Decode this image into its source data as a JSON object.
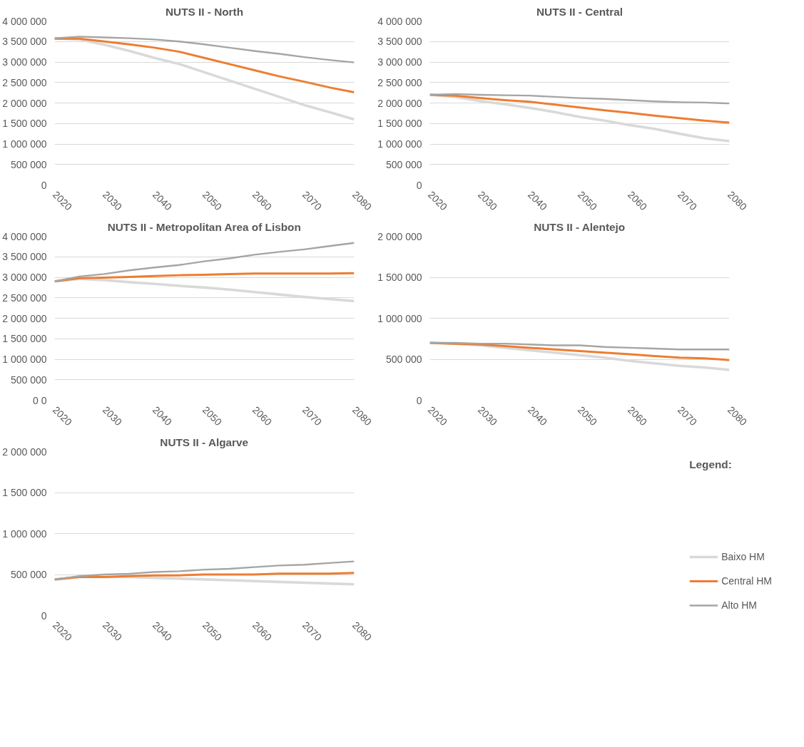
{
  "chart_data": [
    {
      "type": "line",
      "title": "NUTS II - North",
      "x": [
        2020,
        2025,
        2030,
        2035,
        2040,
        2045,
        2050,
        2055,
        2060,
        2065,
        2070,
        2075,
        2080
      ],
      "xlim": [
        2020,
        2080
      ],
      "xticks": [
        2020,
        2030,
        2040,
        2050,
        2060,
        2070,
        2080
      ],
      "ylim": [
        0,
        4000000
      ],
      "yticks": [
        {
          "value": 0,
          "label": "0"
        },
        {
          "value": 500000,
          "label": "500 000"
        },
        {
          "value": 1000000,
          "label": "1 000 000"
        },
        {
          "value": 1500000,
          "label": "1 500 000"
        },
        {
          "value": 2000000,
          "label": "2 000 000"
        },
        {
          "value": 2500000,
          "label": "2 500 000"
        },
        {
          "value": 3000000,
          "label": "3 000 000"
        },
        {
          "value": 3500000,
          "label": "3 500 000"
        },
        {
          "value": 4000000,
          "label": "4 000 000"
        }
      ],
      "grid": "y",
      "legend": false,
      "series": [
        {
          "color": "#d9d9d9",
          "values": [
            3580000,
            3550000,
            3420000,
            3270000,
            3100000,
            2950000,
            2750000,
            2550000,
            2350000,
            2150000,
            1950000,
            1780000,
            1600000
          ]
        },
        {
          "color": "#ed7d31",
          "values": [
            3570000,
            3570000,
            3500000,
            3430000,
            3350000,
            3250000,
            3100000,
            2950000,
            2800000,
            2650000,
            2520000,
            2380000,
            2260000
          ]
        },
        {
          "color": "#a5a5a5",
          "values": [
            3580000,
            3620000,
            3600000,
            3580000,
            3550000,
            3500000,
            3430000,
            3350000,
            3270000,
            3200000,
            3120000,
            3050000,
            2990000
          ]
        }
      ]
    },
    {
      "type": "line",
      "title": "NUTS II - Central",
      "x": [
        2020,
        2025,
        2030,
        2035,
        2040,
        2045,
        2050,
        2055,
        2060,
        2065,
        2070,
        2075,
        2080
      ],
      "xlim": [
        2020,
        2080
      ],
      "xticks": [
        2020,
        2030,
        2040,
        2050,
        2060,
        2070,
        2080
      ],
      "ylim": [
        0,
        4000000
      ],
      "yticks": [
        {
          "value": 0,
          "label": "0"
        },
        {
          "value": 500000,
          "label": "500 000"
        },
        {
          "value": 1000000,
          "label": "1 000 000"
        },
        {
          "value": 1500000,
          "label": "1 500 000"
        },
        {
          "value": 2000000,
          "label": "2 000 000"
        },
        {
          "value": 2500000,
          "label": "2 500 000"
        },
        {
          "value": 3000000,
          "label": "3 000 000"
        },
        {
          "value": 3500000,
          "label": "3 500 000"
        },
        {
          "value": 4000000,
          "label": "4 000 000"
        }
      ],
      "grid": "y",
      "legend": false,
      "series": [
        {
          "color": "#d9d9d9",
          "values": [
            2200000,
            2150000,
            2050000,
            1970000,
            1880000,
            1780000,
            1660000,
            1570000,
            1460000,
            1370000,
            1250000,
            1140000,
            1070000
          ]
        },
        {
          "color": "#ed7d31",
          "values": [
            2200000,
            2180000,
            2120000,
            2070000,
            2030000,
            1960000,
            1890000,
            1820000,
            1760000,
            1690000,
            1630000,
            1570000,
            1520000
          ]
        },
        {
          "color": "#a5a5a5",
          "values": [
            2200000,
            2220000,
            2200000,
            2190000,
            2180000,
            2150000,
            2120000,
            2100000,
            2070000,
            2040000,
            2020000,
            2010000,
            1990000
          ]
        }
      ]
    },
    {
      "type": "line",
      "title": "NUTS II - Metropolitan Area of Lisbon",
      "x": [
        2020,
        2025,
        2030,
        2035,
        2040,
        2045,
        2050,
        2055,
        2060,
        2065,
        2070,
        2075,
        2080
      ],
      "xlim": [
        2020,
        2080
      ],
      "xticks": [
        2020,
        2030,
        2040,
        2050,
        2060,
        2070,
        2080
      ],
      "ylim": [
        0,
        4000000
      ],
      "yticks": [
        {
          "value": 0,
          "label": "0 0"
        },
        {
          "value": 500000,
          "label": "500 000"
        },
        {
          "value": 1000000,
          "label": "1 000 000"
        },
        {
          "value": 1500000,
          "label": "1 500 000"
        },
        {
          "value": 2000000,
          "label": "2 000 000"
        },
        {
          "value": 2500000,
          "label": "2 500 000"
        },
        {
          "value": 3000000,
          "label": "3 000 000"
        },
        {
          "value": 3500000,
          "label": "3 500 000"
        },
        {
          "value": 4000000,
          "label": "4 000 000"
        }
      ],
      "grid": "y",
      "legend": false,
      "series": [
        {
          "color": "#d9d9d9",
          "values": [
            2900000,
            2960000,
            2930000,
            2880000,
            2840000,
            2790000,
            2750000,
            2700000,
            2640000,
            2580000,
            2520000,
            2470000,
            2420000
          ]
        },
        {
          "color": "#ed7d31",
          "values": [
            2900000,
            2980000,
            2990000,
            3010000,
            3030000,
            3050000,
            3060000,
            3080000,
            3090000,
            3090000,
            3090000,
            3090000,
            3100000
          ]
        },
        {
          "color": "#a5a5a5",
          "values": [
            2900000,
            3020000,
            3080000,
            3170000,
            3240000,
            3300000,
            3390000,
            3460000,
            3550000,
            3620000,
            3680000,
            3760000,
            3840000
          ]
        }
      ]
    },
    {
      "type": "line",
      "title": "NUTS II - Alentejo",
      "x": [
        2020,
        2025,
        2030,
        2035,
        2040,
        2045,
        2050,
        2055,
        2060,
        2065,
        2070,
        2075,
        2080
      ],
      "xlim": [
        2020,
        2080
      ],
      "xticks": [
        2020,
        2030,
        2040,
        2050,
        2060,
        2070,
        2080
      ],
      "ylim": [
        0,
        2000000
      ],
      "yticks": [
        {
          "value": 0,
          "label": "0"
        },
        {
          "value": 500000,
          "label": "500 000"
        },
        {
          "value": 1000000,
          "label": "1 000 000"
        },
        {
          "value": 1500000,
          "label": "1 500 000"
        },
        {
          "value": 2000000,
          "label": "2 000 000"
        }
      ],
      "grid": "y",
      "legend": false,
      "series": [
        {
          "color": "#d9d9d9",
          "values": [
            700000,
            690000,
            670000,
            640000,
            610000,
            580000,
            550000,
            520000,
            480000,
            450000,
            420000,
            400000,
            370000
          ]
        },
        {
          "color": "#ed7d31",
          "values": [
            700000,
            690000,
            680000,
            660000,
            640000,
            620000,
            600000,
            580000,
            560000,
            540000,
            520000,
            510000,
            490000
          ]
        },
        {
          "color": "#a5a5a5",
          "values": [
            700000,
            700000,
            690000,
            690000,
            680000,
            670000,
            670000,
            650000,
            640000,
            630000,
            620000,
            620000,
            620000
          ]
        }
      ]
    },
    {
      "type": "line",
      "title": "NUTS II - Algarve",
      "legend_title": "Legend:",
      "x": [
        2020,
        2025,
        2030,
        2035,
        2040,
        2045,
        2050,
        2055,
        2060,
        2065,
        2070,
        2075,
        2080
      ],
      "xlim": [
        2020,
        2080
      ],
      "xticks": [
        2020,
        2030,
        2040,
        2050,
        2060,
        2070,
        2080
      ],
      "ylim": [
        0,
        2000000
      ],
      "yticks": [
        {
          "value": 0,
          "label": "0"
        },
        {
          "value": 500000,
          "label": "500 000"
        },
        {
          "value": 1000000,
          "label": "1 000 000"
        },
        {
          "value": 1500000,
          "label": "1 500 000"
        },
        {
          "value": 2000000,
          "label": "2 000 000"
        }
      ],
      "grid": "y",
      "legend": "right",
      "series": [
        {
          "name": "Baixo HM",
          "color": "#d9d9d9",
          "values": [
            440000,
            470000,
            470000,
            470000,
            460000,
            450000,
            440000,
            430000,
            420000,
            410000,
            400000,
            390000,
            380000
          ]
        },
        {
          "name": "Central HM",
          "color": "#ed7d31",
          "values": [
            440000,
            470000,
            470000,
            480000,
            490000,
            490000,
            500000,
            500000,
            500000,
            510000,
            510000,
            510000,
            520000
          ]
        },
        {
          "name": "Alto HM",
          "color": "#a5a5a5",
          "values": [
            440000,
            480000,
            500000,
            510000,
            530000,
            540000,
            560000,
            570000,
            590000,
            610000,
            620000,
            640000,
            660000
          ]
        }
      ]
    }
  ]
}
